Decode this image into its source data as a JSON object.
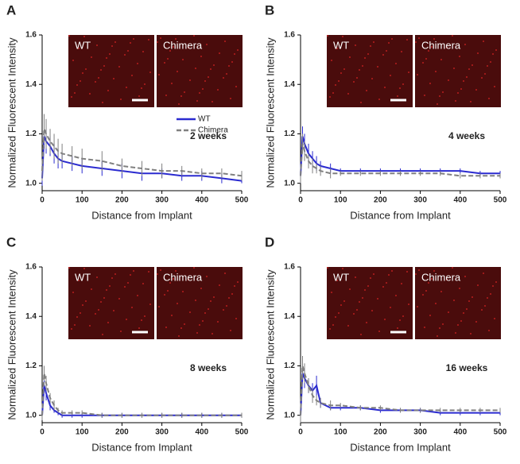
{
  "chart_data": [
    {
      "type": "line",
      "panel": "A",
      "annotation": "2 weeks",
      "xlabel": "Distance from Implant",
      "ylabel": "Normalized Fluorescent Intensity",
      "image_labels": [
        "WT",
        "Chimera"
      ],
      "legend": true,
      "x": [
        0,
        5,
        10,
        20,
        30,
        40,
        50,
        75,
        100,
        150,
        200,
        250,
        300,
        350,
        400,
        450,
        500
      ],
      "series": [
        {
          "name": "WT",
          "color": "#2b2bd0",
          "dash": false,
          "values": [
            1.02,
            1.19,
            1.17,
            1.15,
            1.12,
            1.1,
            1.09,
            1.08,
            1.07,
            1.06,
            1.05,
            1.04,
            1.04,
            1.03,
            1.03,
            1.02,
            1.01
          ],
          "errors": [
            0.03,
            0.05,
            0.05,
            0.04,
            0.04,
            0.04,
            0.03,
            0.03,
            0.03,
            0.03,
            0.03,
            0.03,
            0.02,
            0.02,
            0.02,
            0.02,
            0.01
          ]
        },
        {
          "name": "Chimera",
          "color": "#808080",
          "dash": true,
          "values": [
            1.05,
            1.22,
            1.2,
            1.17,
            1.15,
            1.13,
            1.12,
            1.11,
            1.1,
            1.09,
            1.07,
            1.06,
            1.05,
            1.05,
            1.04,
            1.04,
            1.03
          ],
          "errors": [
            0.04,
            0.06,
            0.06,
            0.05,
            0.05,
            0.05,
            0.04,
            0.04,
            0.04,
            0.04,
            0.03,
            0.03,
            0.03,
            0.02,
            0.02,
            0.02,
            0.02
          ]
        }
      ],
      "xlim": [
        0,
        500
      ],
      "ylim": [
        0.97,
        1.6
      ],
      "xticks": [
        0,
        100,
        200,
        300,
        400,
        500
      ],
      "yticks": [
        {
          "value": 1.0,
          "label": "1.0"
        },
        1.2,
        1.4,
        1.6
      ]
    },
    {
      "type": "line",
      "panel": "B",
      "annotation": "4 weeks",
      "xlabel": "Distance from Implant",
      "ylabel": "Normalized Fluorescent Intensity",
      "image_labels": [
        "WT",
        "Chimera"
      ],
      "legend": false,
      "x": [
        0,
        5,
        10,
        20,
        30,
        40,
        50,
        75,
        100,
        150,
        200,
        250,
        300,
        350,
        400,
        450,
        500
      ],
      "series": [
        {
          "color": "#2b2bd0",
          "dash": false,
          "values": [
            1.03,
            1.19,
            1.16,
            1.12,
            1.1,
            1.08,
            1.07,
            1.06,
            1.05,
            1.05,
            1.05,
            1.05,
            1.05,
            1.05,
            1.05,
            1.04,
            1.04
          ],
          "errors": [
            0.03,
            0.04,
            0.04,
            0.04,
            0.03,
            0.03,
            0.02,
            0.02,
            0.01,
            0.01,
            0.01,
            0.01,
            0.01,
            0.01,
            0.01,
            0.01,
            0.01
          ]
        },
        {
          "color": "#808080",
          "dash": true,
          "values": [
            1.03,
            1.16,
            1.13,
            1.09,
            1.07,
            1.06,
            1.05,
            1.04,
            1.04,
            1.04,
            1.04,
            1.04,
            1.04,
            1.04,
            1.03,
            1.03,
            1.03
          ],
          "errors": [
            0.03,
            0.04,
            0.04,
            0.03,
            0.03,
            0.02,
            0.02,
            0.02,
            0.01,
            0.01,
            0.01,
            0.01,
            0.01,
            0.01,
            0.01,
            0.01,
            0.01
          ]
        }
      ],
      "xlim": [
        0,
        500
      ],
      "ylim": [
        0.97,
        1.6
      ],
      "xticks": [
        0,
        100,
        200,
        300,
        400,
        500
      ],
      "yticks": [
        {
          "value": 1.0,
          "label": "1.0"
        },
        1.2,
        1.4,
        1.6
      ]
    },
    {
      "type": "line",
      "panel": "C",
      "annotation": "8 weeks",
      "xlabel": "Distance from Implant",
      "ylabel": "Normalized Fluorescent Intensity",
      "image_labels": [
        "WT",
        "Chimera"
      ],
      "legend": false,
      "x": [
        0,
        5,
        10,
        20,
        30,
        40,
        50,
        75,
        100,
        150,
        200,
        250,
        300,
        350,
        400,
        450,
        500
      ],
      "series": [
        {
          "color": "#2b2bd0",
          "dash": false,
          "values": [
            1.0,
            1.12,
            1.09,
            1.04,
            1.02,
            1.01,
            1.0,
            1.0,
            1.0,
            1.0,
            1.0,
            1.0,
            1.0,
            1.0,
            1.0,
            1.0,
            1.0
          ],
          "errors": [
            0.02,
            0.03,
            0.03,
            0.02,
            0.01,
            0.01,
            0.01,
            0.01,
            0.01,
            0.01,
            0.01,
            0.01,
            0.01,
            0.01,
            0.01,
            0.01,
            0.01
          ]
        },
        {
          "color": "#808080",
          "dash": true,
          "values": [
            1.0,
            1.17,
            1.13,
            1.07,
            1.04,
            1.02,
            1.01,
            1.01,
            1.01,
            1.0,
            1.0,
            1.0,
            1.0,
            1.0,
            1.0,
            1.0,
            1.0
          ],
          "errors": [
            0.02,
            0.03,
            0.03,
            0.02,
            0.02,
            0.01,
            0.01,
            0.01,
            0.01,
            0.01,
            0.01,
            0.01,
            0.01,
            0.01,
            0.01,
            0.01,
            0.01
          ]
        }
      ],
      "xlim": [
        0,
        500
      ],
      "ylim": [
        0.97,
        1.6
      ],
      "xticks": [
        0,
        100,
        200,
        300,
        400,
        500
      ],
      "yticks": [
        {
          "value": 1.0,
          "label": "1.0"
        },
        1.2,
        1.4,
        1.6
      ]
    },
    {
      "type": "line",
      "panel": "D",
      "annotation": "16 weeks",
      "xlabel": "Distance from Implant",
      "ylabel": "Normalized Fluorescent Intensity",
      "image_labels": [
        "WT",
        "Chimera"
      ],
      "legend": false,
      "x": [
        0,
        5,
        10,
        20,
        30,
        40,
        50,
        75,
        100,
        150,
        200,
        250,
        300,
        350,
        400,
        450,
        500
      ],
      "series": [
        {
          "color": "#2b2bd0",
          "dash": false,
          "values": [
            1.0,
            1.17,
            1.15,
            1.12,
            1.1,
            1.12,
            1.05,
            1.03,
            1.03,
            1.03,
            1.02,
            1.02,
            1.02,
            1.01,
            1.01,
            1.01,
            1.01
          ],
          "errors": [
            0.03,
            0.04,
            0.04,
            0.03,
            0.03,
            0.04,
            0.02,
            0.01,
            0.01,
            0.01,
            0.01,
            0.01,
            0.01,
            0.01,
            0.01,
            0.01,
            0.01
          ]
        },
        {
          "color": "#808080",
          "dash": true,
          "values": [
            1.0,
            1.2,
            1.17,
            1.12,
            1.08,
            1.06,
            1.05,
            1.04,
            1.04,
            1.03,
            1.03,
            1.02,
            1.02,
            1.02,
            1.02,
            1.02,
            1.02
          ],
          "errors": [
            0.03,
            0.04,
            0.04,
            0.03,
            0.03,
            0.02,
            0.02,
            0.02,
            0.01,
            0.01,
            0.01,
            0.01,
            0.01,
            0.01,
            0.01,
            0.01,
            0.01
          ]
        }
      ],
      "xlim": [
        0,
        500
      ],
      "ylim": [
        0.97,
        1.6
      ],
      "xticks": [
        0,
        100,
        200,
        300,
        400,
        500
      ],
      "yticks": [
        {
          "value": 1.0,
          "label": "1.0"
        },
        1.2,
        1.4,
        1.6
      ]
    }
  ]
}
